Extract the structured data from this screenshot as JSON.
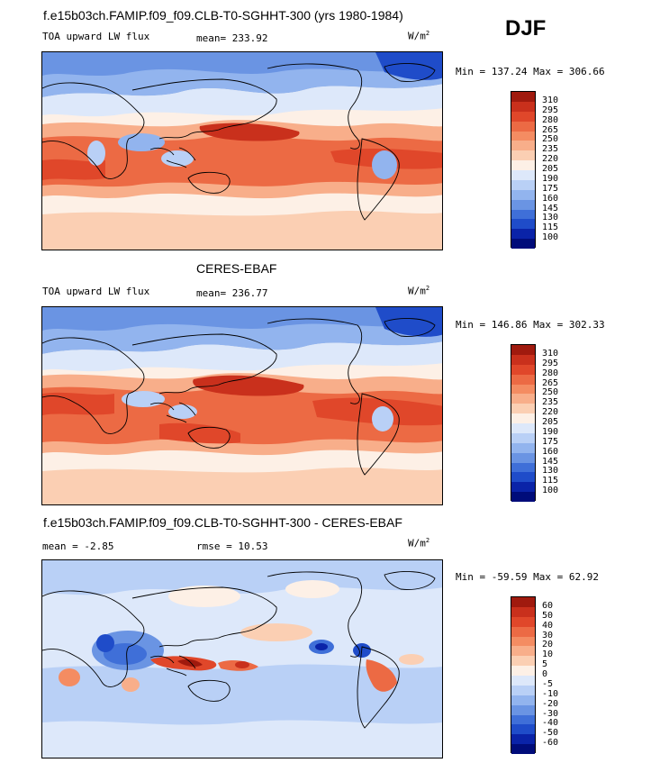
{
  "season": "DJF",
  "panel1": {
    "title": "f.e15b03ch.FAMIP.f09_f09.CLB-T0-SGHHT-300 (yrs 1980-1984)",
    "variable": "TOA upward LW flux",
    "stat": "mean= 233.92",
    "units_base": "W/m",
    "units_exp": "2",
    "minmax": "Min = 137.24 Max = 306.66",
    "levels": [
      "310",
      "295",
      "280",
      "265",
      "250",
      "235",
      "220",
      "205",
      "190",
      "175",
      "160",
      "145",
      "130",
      "115",
      "100"
    ],
    "colors": [
      "#a01a0e",
      "#c9301c",
      "#e0472a",
      "#ec6a44",
      "#f48c62",
      "#f8ae8a",
      "#fbcfb3",
      "#fdf0e6",
      "#dde8fa",
      "#b9d0f6",
      "#92b4ee",
      "#6a94e3",
      "#3f6fd8",
      "#1f4cc9",
      "#0a23a8",
      "#000c7a"
    ]
  },
  "panel2": {
    "title": "CERES-EBAF",
    "variable": "TOA upward LW flux",
    "stat": "mean= 236.77",
    "units_base": "W/m",
    "units_exp": "2",
    "minmax": "Min = 146.86 Max = 302.33",
    "levels": [
      "310",
      "295",
      "280",
      "265",
      "250",
      "235",
      "220",
      "205",
      "190",
      "175",
      "160",
      "145",
      "130",
      "115",
      "100"
    ],
    "colors": [
      "#a01a0e",
      "#c9301c",
      "#e0472a",
      "#ec6a44",
      "#f48c62",
      "#f8ae8a",
      "#fbcfb3",
      "#fdf0e6",
      "#dde8fa",
      "#b9d0f6",
      "#92b4ee",
      "#6a94e3",
      "#3f6fd8",
      "#1f4cc9",
      "#0a23a8",
      "#000c7a"
    ]
  },
  "panel3": {
    "title": "f.e15b03ch.FAMIP.f09_f09.CLB-T0-SGHHT-300 - CERES-EBAF",
    "stat_mean": "mean =   -2.85",
    "stat_rmse": "rmse =   10.53",
    "units_base": "W/m",
    "units_exp": "2",
    "minmax": "Min = -59.59 Max =  62.92",
    "levels": [
      "60",
      "50",
      "40",
      "30",
      "20",
      "10",
      "5",
      "0",
      "-5",
      "-10",
      "-20",
      "-30",
      "-40",
      "-50",
      "-60"
    ],
    "colors": [
      "#a01a0e",
      "#c9301c",
      "#e0472a",
      "#ec6a44",
      "#f48c62",
      "#f8ae8a",
      "#fbcfb3",
      "#fdf0e6",
      "#dde8fa",
      "#b9d0f6",
      "#92b4ee",
      "#6a94e3",
      "#3f6fd8",
      "#1f4cc9",
      "#0a23a8",
      "#000c7a"
    ]
  }
}
